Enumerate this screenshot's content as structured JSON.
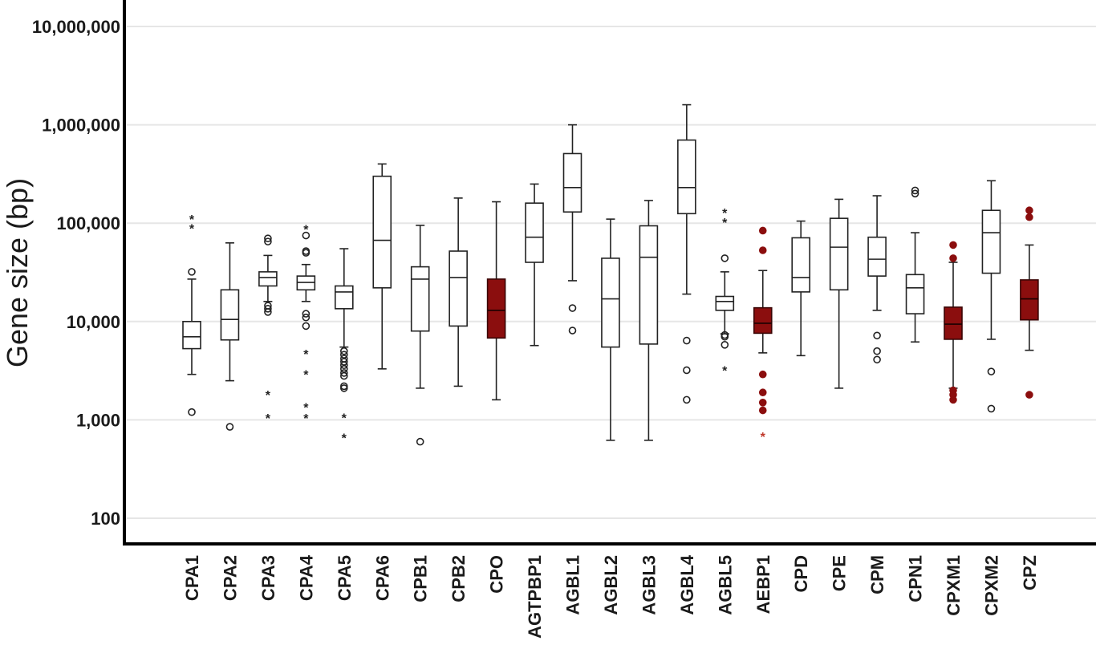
{
  "chart_data": {
    "type": "box",
    "title": "",
    "xlabel": "",
    "ylabel": "Gene size (bp)",
    "yscale": "log",
    "ylim": [
      60,
      13000000
    ],
    "yticks": [
      100,
      1000,
      10000,
      100000,
      1000000,
      10000000
    ],
    "ytick_labels": [
      "100",
      "1,000",
      "10,000",
      "100,000",
      "1,000,000",
      "10,000,000"
    ],
    "grid": "horizontal",
    "highlight_color": "#8b0e0e",
    "default_box_color": "#ffffff",
    "categories": [
      "CPA1",
      "CPA2",
      "CPA3",
      "CPA4",
      "CPA5",
      "CPA6",
      "CPB1",
      "CPB2",
      "CPO",
      "AGTPBP1",
      "AGBL1",
      "AGBL2",
      "AGBL3",
      "AGBL4",
      "AGBL5",
      "AEBP1",
      "CPD",
      "CPE",
      "CPM",
      "CPN1",
      "CPXM1",
      "CPXM2",
      "CPZ"
    ],
    "boxes": [
      {
        "label": "CPA1",
        "whisker_low": 2900,
        "q1": 5300,
        "median": 7000,
        "q3": 10000,
        "whisker_high": 27000,
        "highlighted": false,
        "outliers_circle": [
          1200,
          32000
        ],
        "outliers_star": [
          89000,
          110000
        ]
      },
      {
        "label": "CPA2",
        "whisker_low": 2500,
        "q1": 6500,
        "median": 10500,
        "q3": 21000,
        "whisker_high": 63000,
        "highlighted": false,
        "outliers_circle": [
          850
        ],
        "outliers_star": []
      },
      {
        "label": "CPA3",
        "whisker_low": 16000,
        "q1": 23000,
        "median": 28000,
        "q3": 32000,
        "whisker_high": 47000,
        "highlighted": false,
        "outliers_circle": [
          12500,
          13500,
          14500,
          65000,
          70000
        ],
        "outliers_star": [
          1050,
          1800
        ]
      },
      {
        "label": "CPA4",
        "whisker_low": 16000,
        "q1": 21000,
        "median": 25000,
        "q3": 29000,
        "whisker_high": 38000,
        "highlighted": false,
        "outliers_circle": [
          9000,
          11000,
          12000,
          50000,
          52000,
          75000
        ],
        "outliers_star": [
          1050,
          1350,
          2900,
          4700,
          87000
        ]
      },
      {
        "label": "CPA5",
        "whisker_low": 5500,
        "q1": 13500,
        "median": 20000,
        "q3": 23000,
        "whisker_high": 55000,
        "highlighted": false,
        "outliers_circle": [
          2100,
          2200,
          2800,
          3000,
          3300,
          3600,
          3900,
          4200,
          4600,
          5000
        ],
        "outliers_star": [
          660,
          1060
        ]
      },
      {
        "label": "CPA6",
        "whisker_low": 3300,
        "q1": 22000,
        "median": 67000,
        "q3": 300000,
        "whisker_high": 400000,
        "highlighted": false,
        "outliers_circle": [],
        "outliers_star": []
      },
      {
        "label": "CPB1",
        "whisker_low": 2100,
        "q1": 8000,
        "median": 27000,
        "q3": 36000,
        "whisker_high": 95000,
        "highlighted": false,
        "outliers_circle": [
          600
        ],
        "outliers_star": []
      },
      {
        "label": "CPB2",
        "whisker_low": 2200,
        "q1": 9000,
        "median": 28000,
        "q3": 52000,
        "whisker_high": 180000,
        "highlighted": false,
        "outliers_circle": [],
        "outliers_star": []
      },
      {
        "label": "CPO",
        "whisker_low": 1600,
        "q1": 6800,
        "median": 13000,
        "q3": 27000,
        "whisker_high": 165000,
        "highlighted": true,
        "outliers_circle": [],
        "outliers_star": []
      },
      {
        "label": "AGTPBP1",
        "whisker_low": 5700,
        "q1": 40000,
        "median": 72000,
        "q3": 160000,
        "whisker_high": 250000,
        "highlighted": false,
        "outliers_circle": [],
        "outliers_star": []
      },
      {
        "label": "AGBL1",
        "whisker_low": 26000,
        "q1": 130000,
        "median": 230000,
        "q3": 510000,
        "whisker_high": 1000000,
        "highlighted": false,
        "outliers_circle": [
          8100,
          13700
        ],
        "outliers_star": []
      },
      {
        "label": "AGBL2",
        "whisker_low": 620,
        "q1": 5500,
        "median": 17000,
        "q3": 44000,
        "whisker_high": 110000,
        "highlighted": false,
        "outliers_circle": [],
        "outliers_star": []
      },
      {
        "label": "AGBL3",
        "whisker_low": 620,
        "q1": 5900,
        "median": 45000,
        "q3": 94000,
        "whisker_high": 170000,
        "highlighted": false,
        "outliers_circle": [],
        "outliers_star": []
      },
      {
        "label": "AGBL4",
        "whisker_low": 19000,
        "q1": 125000,
        "median": 230000,
        "q3": 700000,
        "whisker_high": 1600000,
        "highlighted": false,
        "outliers_circle": [
          1600,
          3200,
          6400
        ],
        "outliers_star": []
      },
      {
        "label": "AGBL5",
        "whisker_low": 7500,
        "q1": 13000,
        "median": 16000,
        "q3": 18000,
        "whisker_high": 32000,
        "highlighted": false,
        "outliers_circle": [
          5800,
          7000,
          7300,
          44000
        ],
        "outliers_star": [
          3200,
          102000,
          128000
        ]
      },
      {
        "label": "AEBP1",
        "whisker_low": 4800,
        "q1": 7600,
        "median": 9600,
        "q3": 13800,
        "whisker_high": 33000,
        "highlighted": true,
        "outliers_circle": [
          1250,
          1500,
          1900,
          2900,
          53000,
          84000
        ],
        "outliers_star": [
          680
        ]
      },
      {
        "label": "CPD",
        "whisker_low": 4500,
        "q1": 20000,
        "median": 28000,
        "q3": 71000,
        "whisker_high": 105000,
        "highlighted": false,
        "outliers_circle": [],
        "outliers_star": []
      },
      {
        "label": "CPE",
        "whisker_low": 2100,
        "q1": 21000,
        "median": 57000,
        "q3": 112000,
        "whisker_high": 175000,
        "highlighted": false,
        "outliers_circle": [],
        "outliers_star": []
      },
      {
        "label": "CPM",
        "whisker_low": 13000,
        "q1": 29000,
        "median": 43000,
        "q3": 72000,
        "whisker_high": 190000,
        "highlighted": false,
        "outliers_circle": [
          4100,
          5000,
          7200
        ],
        "outliers_star": []
      },
      {
        "label": "CPN1",
        "whisker_low": 6200,
        "q1": 12000,
        "median": 22000,
        "q3": 30000,
        "whisker_high": 80000,
        "highlighted": false,
        "outliers_circle": [
          200000,
          215000
        ],
        "outliers_star": []
      },
      {
        "label": "CPXM1",
        "whisker_low": 2100,
        "q1": 6600,
        "median": 9400,
        "q3": 14000,
        "whisker_high": 40000,
        "highlighted": true,
        "outliers_circle": [
          1600,
          1800,
          2000,
          44000,
          60000
        ],
        "outliers_star": []
      },
      {
        "label": "CPXM2",
        "whisker_low": 6600,
        "q1": 31000,
        "median": 80000,
        "q3": 135000,
        "whisker_high": 270000,
        "highlighted": false,
        "outliers_circle": [
          1300,
          3100
        ],
        "outliers_star": []
      },
      {
        "label": "CPZ",
        "whisker_low": 5100,
        "q1": 10400,
        "median": 17000,
        "q3": 26500,
        "whisker_high": 60000,
        "highlighted": true,
        "outliers_circle": [
          1800,
          115000,
          135000
        ],
        "outliers_star": []
      }
    ]
  }
}
